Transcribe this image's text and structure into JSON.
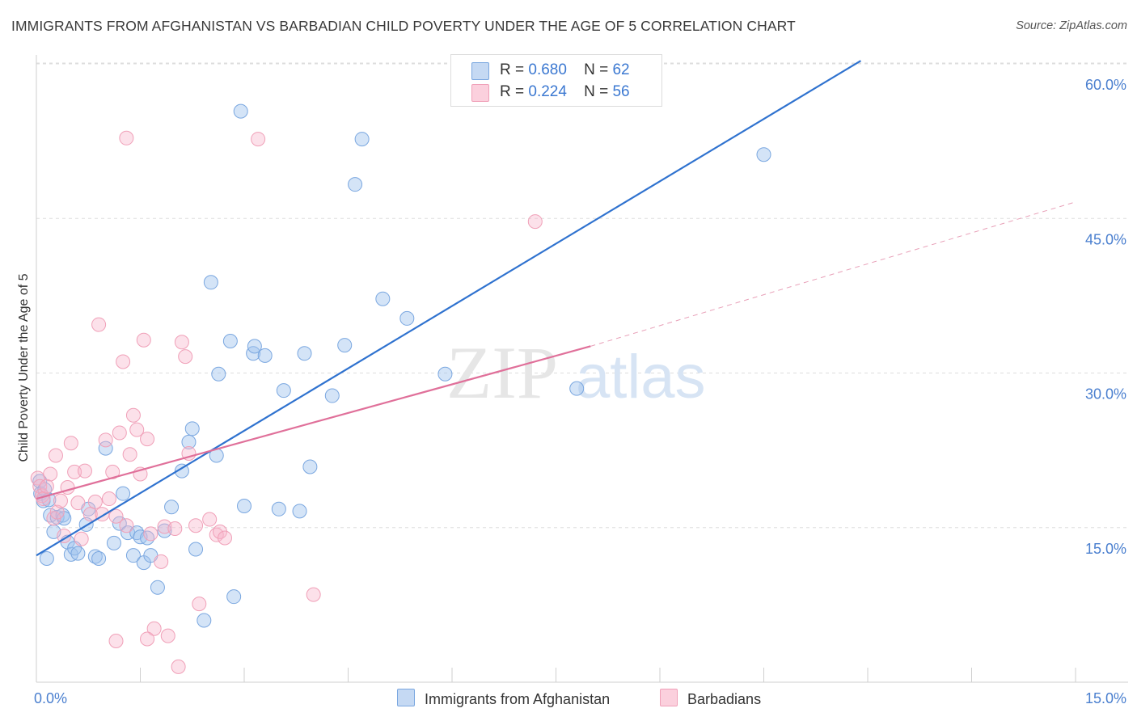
{
  "title": "IMMIGRANTS FROM AFGHANISTAN VS BARBADIAN CHILD POVERTY UNDER THE AGE OF 5 CORRELATION CHART",
  "source": "Source: ZipAtlas.com",
  "watermark": {
    "zip": "ZIP",
    "atlas": "atlas"
  },
  "legend": {
    "rows": [
      {
        "r_label": "R =",
        "r_value": "0.680",
        "n_label": "N =",
        "n_value": "62"
      },
      {
        "r_label": "R =",
        "r_value": "0.224",
        "n_label": "N =",
        "n_value": "56"
      }
    ]
  },
  "chart_data": {
    "type": "scatter",
    "title": "IMMIGRANTS FROM AFGHANISTAN VS BARBADIAN CHILD POVERTY UNDER THE AGE OF 5 CORRELATION CHART",
    "xlabel": "",
    "ylabel": "Child Poverty Under the Age of 5",
    "xlim": [
      0,
      15
    ],
    "ylim": [
      0,
      63
    ],
    "x_tick_labels": [
      "0.0%",
      "15.0%"
    ],
    "y_tick_labels": [
      "15.0%",
      "30.0%",
      "45.0%",
      "60.0%"
    ],
    "y_ticks": [
      15,
      30,
      45,
      60
    ],
    "grid": true,
    "legend_position": "top-center",
    "series": [
      {
        "name": "Immigrants from Afghanistan",
        "color": "#7aa7e0",
        "r": 0.68,
        "n": 62,
        "trend": {
          "x": [
            0,
            11.9
          ],
          "y": [
            12.3,
            60.3
          ],
          "style": "solid"
        },
        "points": [
          [
            0.05,
            19.5
          ],
          [
            0.06,
            18.3
          ],
          [
            0.1,
            17.6
          ],
          [
            0.12,
            18.7
          ],
          [
            0.15,
            12.0
          ],
          [
            0.2,
            16.2
          ],
          [
            0.25,
            14.6
          ],
          [
            0.3,
            16.0
          ],
          [
            0.38,
            16.2
          ],
          [
            0.45,
            13.6
          ],
          [
            0.5,
            12.4
          ],
          [
            0.55,
            13.0
          ],
          [
            0.6,
            12.5
          ],
          [
            0.72,
            15.3
          ],
          [
            0.75,
            16.8
          ],
          [
            0.85,
            12.2
          ],
          [
            0.9,
            12.0
          ],
          [
            1.0,
            22.7
          ],
          [
            1.12,
            13.5
          ],
          [
            1.2,
            15.4
          ],
          [
            1.25,
            18.3
          ],
          [
            1.32,
            14.5
          ],
          [
            1.4,
            12.3
          ],
          [
            1.45,
            14.5
          ],
          [
            1.5,
            14.1
          ],
          [
            1.55,
            11.6
          ],
          [
            1.6,
            14.0
          ],
          [
            1.65,
            12.3
          ],
          [
            1.75,
            9.2
          ],
          [
            1.85,
            14.7
          ],
          [
            1.95,
            17.0
          ],
          [
            2.1,
            20.5
          ],
          [
            2.2,
            23.3
          ],
          [
            2.25,
            24.6
          ],
          [
            2.3,
            12.9
          ],
          [
            2.42,
            6.0
          ],
          [
            2.52,
            38.8
          ],
          [
            2.6,
            22.0
          ],
          [
            2.63,
            29.9
          ],
          [
            2.8,
            33.1
          ],
          [
            2.85,
            8.3
          ],
          [
            2.95,
            55.4
          ],
          [
            3.0,
            17.1
          ],
          [
            3.13,
            31.9
          ],
          [
            3.15,
            32.6
          ],
          [
            3.3,
            31.7
          ],
          [
            3.5,
            16.8
          ],
          [
            3.57,
            28.3
          ],
          [
            3.8,
            16.6
          ],
          [
            3.87,
            31.9
          ],
          [
            3.95,
            20.9
          ],
          [
            4.27,
            27.8
          ],
          [
            4.45,
            32.7
          ],
          [
            4.6,
            48.3
          ],
          [
            4.7,
            52.7
          ],
          [
            5.0,
            37.2
          ],
          [
            5.35,
            35.3
          ],
          [
            5.9,
            29.9
          ],
          [
            7.8,
            28.5
          ],
          [
            10.5,
            51.2
          ],
          [
            0.18,
            17.7
          ],
          [
            0.4,
            15.9
          ]
        ]
      },
      {
        "name": "Barbadians",
        "color": "#f0a0b8",
        "r": 0.224,
        "n": 56,
        "trend": {
          "x": [
            0,
            8.0
          ],
          "y": [
            17.8,
            32.6
          ],
          "style": "solid",
          "extended": {
            "x": [
              8.0,
              15.0
            ],
            "y": [
              32.6,
              46.6
            ],
            "style": "dashed"
          }
        },
        "points": [
          [
            0.02,
            19.8
          ],
          [
            0.05,
            19.0
          ],
          [
            0.08,
            18.1
          ],
          [
            0.1,
            17.8
          ],
          [
            0.15,
            19.0
          ],
          [
            0.2,
            20.2
          ],
          [
            0.25,
            15.9
          ],
          [
            0.28,
            22.0
          ],
          [
            0.3,
            16.5
          ],
          [
            0.35,
            17.6
          ],
          [
            0.4,
            14.2
          ],
          [
            0.45,
            18.9
          ],
          [
            0.5,
            23.2
          ],
          [
            0.55,
            20.4
          ],
          [
            0.6,
            17.4
          ],
          [
            0.65,
            13.9
          ],
          [
            0.7,
            20.5
          ],
          [
            0.78,
            16.3
          ],
          [
            0.85,
            17.5
          ],
          [
            0.9,
            34.7
          ],
          [
            0.95,
            16.3
          ],
          [
            1.0,
            23.5
          ],
          [
            1.05,
            17.8
          ],
          [
            1.1,
            20.4
          ],
          [
            1.15,
            16.1
          ],
          [
            1.2,
            24.2
          ],
          [
            1.25,
            31.1
          ],
          [
            1.3,
            15.2
          ],
          [
            1.35,
            22.1
          ],
          [
            1.4,
            25.9
          ],
          [
            1.45,
            24.5
          ],
          [
            1.5,
            20.2
          ],
          [
            1.55,
            33.2
          ],
          [
            1.6,
            23.6
          ],
          [
            1.65,
            14.4
          ],
          [
            1.7,
            5.2
          ],
          [
            1.8,
            11.7
          ],
          [
            1.85,
            15.1
          ],
          [
            1.9,
            4.5
          ],
          [
            2.0,
            14.9
          ],
          [
            2.05,
            1.5
          ],
          [
            2.1,
            33.0
          ],
          [
            2.15,
            31.6
          ],
          [
            2.2,
            22.2
          ],
          [
            2.3,
            15.2
          ],
          [
            2.35,
            7.6
          ],
          [
            2.5,
            15.8
          ],
          [
            2.6,
            14.3
          ],
          [
            2.65,
            14.6
          ],
          [
            2.72,
            14.0
          ],
          [
            1.15,
            4.0
          ],
          [
            1.6,
            4.2
          ],
          [
            3.2,
            52.7
          ],
          [
            4.0,
            8.5
          ],
          [
            7.2,
            44.7
          ],
          [
            1.3,
            52.8
          ]
        ]
      }
    ]
  }
}
